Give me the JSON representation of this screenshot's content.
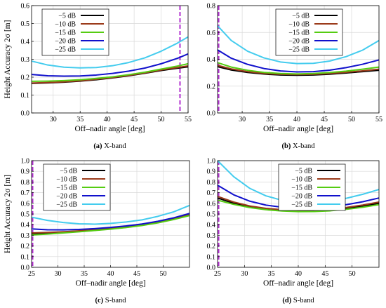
{
  "chart_data": [
    {
      "type": "line",
      "ylabel": "Height Accuracy 2σ [m]",
      "xlabel": "Off–nadir angle [deg]",
      "xlim": [
        26,
        55
      ],
      "ylim": [
        0,
        0.6
      ],
      "xticks": [
        30,
        35,
        40,
        45,
        50,
        55
      ],
      "yticks": [
        0,
        0.1,
        0.2,
        0.3,
        0.4,
        0.5,
        0.6
      ],
      "grid": true,
      "legend_position": "top-left",
      "vline": 53.5,
      "caption_letter": "(a)",
      "caption_text": "X-band",
      "x": [
        26,
        29,
        32,
        35,
        38,
        41,
        44,
        47,
        50,
        53,
        55
      ],
      "series": [
        {
          "name": "−5 dB",
          "color": "#000000",
          "values": [
            0.165,
            0.168,
            0.172,
            0.178,
            0.186,
            0.196,
            0.208,
            0.222,
            0.237,
            0.25,
            0.258
          ]
        },
        {
          "name": "−10 dB",
          "color": "#9b3a1a",
          "values": [
            0.167,
            0.17,
            0.174,
            0.18,
            0.188,
            0.198,
            0.21,
            0.224,
            0.24,
            0.254,
            0.263
          ]
        },
        {
          "name": "−15 dB",
          "color": "#55cc11",
          "values": [
            0.177,
            0.178,
            0.181,
            0.186,
            0.193,
            0.202,
            0.214,
            0.228,
            0.245,
            0.262,
            0.275
          ]
        },
        {
          "name": "−20 dB",
          "color": "#1010cc",
          "values": [
            0.215,
            0.208,
            0.206,
            0.207,
            0.212,
            0.221,
            0.234,
            0.251,
            0.275,
            0.305,
            0.33
          ]
        },
        {
          "name": "−25 dB",
          "color": "#44ccee",
          "values": [
            0.29,
            0.268,
            0.256,
            0.252,
            0.254,
            0.264,
            0.282,
            0.308,
            0.345,
            0.39,
            0.425
          ]
        }
      ]
    },
    {
      "type": "line",
      "ylabel": "",
      "xlabel": "Off–nadir angle [deg]",
      "xlim": [
        25.5,
        55
      ],
      "ylim": [
        0,
        0.8
      ],
      "xticks": [
        30,
        35,
        40,
        45,
        50,
        55
      ],
      "yticks": [
        0,
        0.2,
        0.4,
        0.6,
        0.8
      ],
      "grid": true,
      "legend_position": "top-right",
      "vline": 25.7,
      "caption_letter": "(b)",
      "caption_text": "X-band",
      "x": [
        25.5,
        28,
        31,
        34,
        37,
        40,
        43,
        46,
        49,
        52,
        55
      ],
      "series": [
        {
          "name": "−5 dB",
          "color": "#000000",
          "values": [
            0.345,
            0.32,
            0.302,
            0.29,
            0.283,
            0.281,
            0.283,
            0.289,
            0.298,
            0.308,
            0.318
          ]
        },
        {
          "name": "−10 dB",
          "color": "#9b3a1a",
          "values": [
            0.355,
            0.328,
            0.308,
            0.295,
            0.288,
            0.286,
            0.288,
            0.294,
            0.303,
            0.314,
            0.326
          ]
        },
        {
          "name": "−15 dB",
          "color": "#55cc11",
          "values": [
            0.375,
            0.342,
            0.318,
            0.302,
            0.294,
            0.291,
            0.294,
            0.301,
            0.312,
            0.326,
            0.342
          ]
        },
        {
          "name": "−20 dB",
          "color": "#1010cc",
          "values": [
            0.47,
            0.408,
            0.362,
            0.331,
            0.313,
            0.306,
            0.308,
            0.319,
            0.338,
            0.363,
            0.395
          ]
        },
        {
          "name": "−25 dB",
          "color": "#44ccee",
          "values": [
            0.65,
            0.54,
            0.46,
            0.41,
            0.38,
            0.368,
            0.37,
            0.387,
            0.42,
            0.468,
            0.54
          ]
        }
      ]
    },
    {
      "type": "line",
      "ylabel": "Height Accuracy 2σ [m]",
      "xlabel": "Off–nadir angle [deg]",
      "xlim": [
        25,
        55
      ],
      "ylim": [
        0,
        1.0
      ],
      "xticks": [
        25,
        30,
        35,
        40,
        45,
        50
      ],
      "yticks": [
        0,
        0.1,
        0.2,
        0.3,
        0.4,
        0.5,
        0.6,
        0.7,
        0.8,
        0.9,
        1.0
      ],
      "grid": true,
      "legend_position": "top-left",
      "vline": 25.2,
      "caption_letter": "(c)",
      "caption_text": "S-band",
      "x": [
        25,
        28,
        31,
        34,
        37,
        40,
        43,
        46,
        49,
        52,
        55
      ],
      "series": [
        {
          "name": "−5 dB",
          "color": "#000000",
          "values": [
            0.31,
            0.318,
            0.326,
            0.336,
            0.347,
            0.36,
            0.375,
            0.395,
            0.42,
            0.452,
            0.49
          ]
        },
        {
          "name": "−10 dB",
          "color": "#9b3a1a",
          "values": [
            0.322,
            0.327,
            0.333,
            0.342,
            0.352,
            0.364,
            0.379,
            0.398,
            0.424,
            0.456,
            0.495
          ]
        },
        {
          "name": "−15 dB",
          "color": "#55cc11",
          "values": [
            0.303,
            0.312,
            0.322,
            0.333,
            0.345,
            0.358,
            0.373,
            0.392,
            0.417,
            0.448,
            0.485
          ]
        },
        {
          "name": "−20 dB",
          "color": "#1010cc",
          "values": [
            0.36,
            0.352,
            0.351,
            0.355,
            0.363,
            0.374,
            0.388,
            0.406,
            0.432,
            0.464,
            0.505
          ]
        },
        {
          "name": "−25 dB",
          "color": "#44ccee",
          "values": [
            0.47,
            0.44,
            0.42,
            0.408,
            0.405,
            0.412,
            0.425,
            0.445,
            0.478,
            0.52,
            0.58
          ]
        }
      ]
    },
    {
      "type": "line",
      "ylabel": "",
      "xlabel": "Off–nadir angle [deg]",
      "xlim": [
        25,
        55
      ],
      "ylim": [
        0,
        1.0
      ],
      "xticks": [
        25,
        30,
        35,
        40,
        45,
        50
      ],
      "yticks": [
        0,
        0.1,
        0.2,
        0.3,
        0.4,
        0.5,
        0.6,
        0.7,
        0.8,
        0.9,
        1.0
      ],
      "grid": true,
      "legend_position": "top-right",
      "vline": 25.2,
      "caption_letter": "(d)",
      "caption_text": "S-band",
      "x": [
        25,
        28,
        31,
        34,
        37,
        40,
        43,
        46,
        49,
        52,
        55
      ],
      "series": [
        {
          "name": "−5 dB",
          "color": "#000000",
          "values": [
            0.65,
            0.6,
            0.565,
            0.545,
            0.533,
            0.528,
            0.53,
            0.538,
            0.553,
            0.573,
            0.6
          ]
        },
        {
          "name": "−10 dB",
          "color": "#9b3a1a",
          "values": [
            0.665,
            0.612,
            0.575,
            0.553,
            0.54,
            0.535,
            0.537,
            0.546,
            0.562,
            0.584,
            0.612
          ]
        },
        {
          "name": "−15 dB",
          "color": "#55cc11",
          "values": [
            0.63,
            0.59,
            0.56,
            0.54,
            0.528,
            0.522,
            0.523,
            0.53,
            0.544,
            0.563,
            0.588
          ]
        },
        {
          "name": "−20 dB",
          "color": "#1010cc",
          "values": [
            0.77,
            0.68,
            0.62,
            0.583,
            0.563,
            0.555,
            0.557,
            0.568,
            0.588,
            0.615,
            0.65
          ]
        },
        {
          "name": "−25 dB",
          "color": "#44ccee",
          "values": [
            1.0,
            0.85,
            0.74,
            0.67,
            0.628,
            0.61,
            0.61,
            0.622,
            0.648,
            0.685,
            0.73
          ]
        }
      ]
    }
  ]
}
